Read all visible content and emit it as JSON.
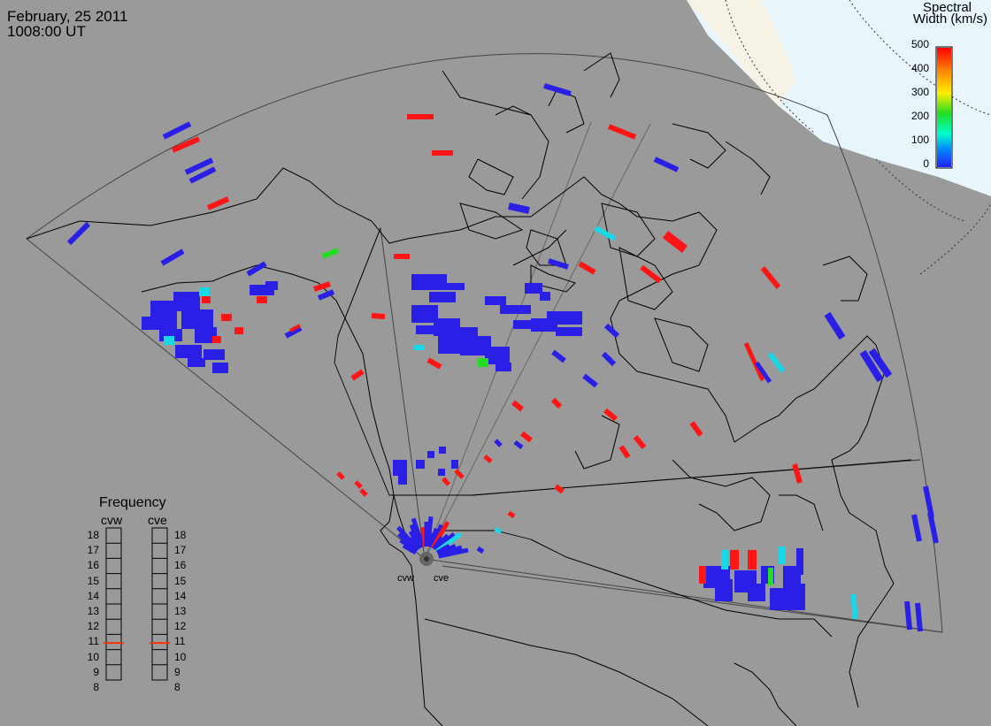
{
  "header": {
    "date": "February, 25 2011",
    "time": "1008:00 UT"
  },
  "colorbar": {
    "title_line1": "Spectral",
    "title_line2": "Width (km/s)",
    "ticks": [
      "500",
      "400",
      "300",
      "200",
      "100",
      "0"
    ],
    "colors": [
      "#ff0000",
      "#ff8800",
      "#ffee00",
      "#00dd00",
      "#00ffcc",
      "#0088ff",
      "#2222ff"
    ]
  },
  "frequency": {
    "title": "Frequency",
    "left_label": "cvw",
    "right_label": "cve",
    "scale": [
      "18",
      "17",
      "16",
      "15",
      "14",
      "13",
      "12",
      "11",
      "10",
      "9",
      "8"
    ],
    "cvw_mhz": 10.9,
    "cve_mhz": 10.9
  },
  "sites": {
    "west": "cvw",
    "east": "cve"
  },
  "map_colors": {
    "background": "#9a9a9a",
    "ocean_polar": "#e8f6fc",
    "land_polar": "#f6f3e6",
    "low": "#2a1fe6",
    "high": "#ff1515",
    "mid": "#18d8e8",
    "green": "#22dd22"
  }
}
